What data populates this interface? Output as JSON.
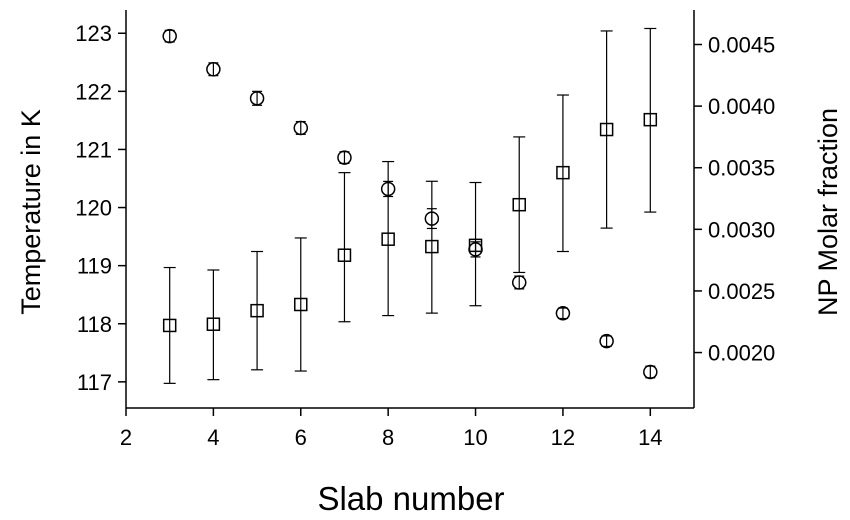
{
  "chart_data": {
    "type": "scatter",
    "title": "",
    "xlabel": "Slab number",
    "ylabel_left": "Temperature in K",
    "ylabel_right": "NP Molar fraction",
    "x_ticks": [
      "2",
      "4",
      "6",
      "8",
      "10",
      "12",
      "14"
    ],
    "y_left_ticks": [
      "117",
      "118",
      "119",
      "120",
      "121",
      "122",
      "123"
    ],
    "y_right_ticks": [
      "0.0020",
      "0.0025",
      "0.0030",
      "0.0035",
      "0.0040",
      "0.0045"
    ],
    "xlim": [
      2,
      15
    ],
    "ylim_left": [
      116.55,
      123.4
    ],
    "ylim_right": [
      0.00155,
      0.00478
    ],
    "grid": false,
    "series": [
      {
        "axis": "left",
        "marker": "circle",
        "x": [
          3,
          4,
          5,
          6,
          7,
          8,
          9,
          10,
          11,
          12,
          13,
          14
        ],
        "y": [
          122.95,
          122.38,
          121.88,
          121.37,
          120.86,
          120.32,
          119.81,
          119.28,
          118.71,
          118.18,
          117.7,
          117.17
        ],
        "err": [
          0.1,
          0.11,
          0.12,
          0.11,
          0.1,
          0.13,
          0.17,
          0.13,
          0.11,
          0.09,
          0.09,
          0.1
        ]
      },
      {
        "axis": "right",
        "marker": "square",
        "x": [
          3,
          4,
          5,
          6,
          7,
          8,
          9,
          10,
          11,
          12,
          13,
          14
        ],
        "y": [
          0.00222,
          0.00223,
          0.00234,
          0.00239,
          0.00279,
          0.00292,
          0.00286,
          0.00287,
          0.0032,
          0.00346,
          0.00381,
          0.00389
        ],
        "err_low": [
          0.00047,
          0.00045,
          0.00048,
          0.00054,
          0.00054,
          0.00062,
          0.00054,
          0.00049,
          0.00055,
          0.00064,
          0.0008,
          0.00075
        ],
        "err_high": [
          0.00047,
          0.00044,
          0.00048,
          0.00054,
          0.00067,
          0.00063,
          0.00053,
          0.00051,
          0.00055,
          0.00063,
          0.0008,
          0.00074
        ]
      }
    ]
  }
}
